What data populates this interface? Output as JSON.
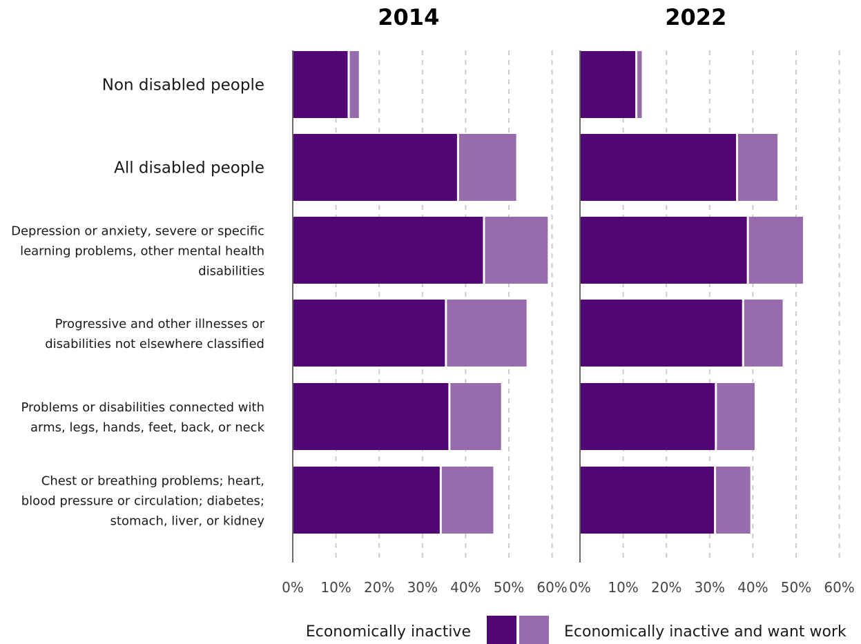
{
  "colors": {
    "inactive": "#510675",
    "want_work": "#966cac"
  },
  "chart_data": {
    "type": "bar",
    "orientation": "horizontal",
    "stacked": true,
    "x_ticks": [
      "0%",
      "10%",
      "20%",
      "30%",
      "40%",
      "50%",
      "60%"
    ],
    "xlim": [
      0,
      60
    ],
    "grid": "vertical dashed",
    "legend_position": "bottom",
    "categories": [
      [
        "Non disabled people"
      ],
      [
        "All disabled people"
      ],
      [
        "Depression or anxiety, severe or specific",
        "learning problems, other mental health",
        "disabilities"
      ],
      [
        "Progressive and other illnesses or",
        "disabilities not elsewhere classified"
      ],
      [
        "Problems or disabilities connected with",
        "arms, legs, hands, feet, back, or neck"
      ],
      [
        "Chest or breathing problems; heart,",
        "blood pressure or circulation; diabetes;",
        "stomach, liver, or kidney"
      ]
    ],
    "series_names": [
      "Economically inactive",
      "Economically inactive and want work"
    ],
    "panels": [
      {
        "title": "2014",
        "inactive": [
          12.7,
          38.0,
          44.0,
          35.2,
          36.0,
          34.0
        ],
        "want_work": [
          2.6,
          13.7,
          15.0,
          18.9,
          12.2,
          12.4
        ]
      },
      {
        "title": "2022",
        "inactive": [
          12.8,
          36.1,
          38.6,
          37.5,
          31.2,
          31.0
        ],
        "want_work": [
          1.5,
          9.6,
          13.0,
          9.4,
          9.2,
          8.4
        ]
      }
    ]
  }
}
